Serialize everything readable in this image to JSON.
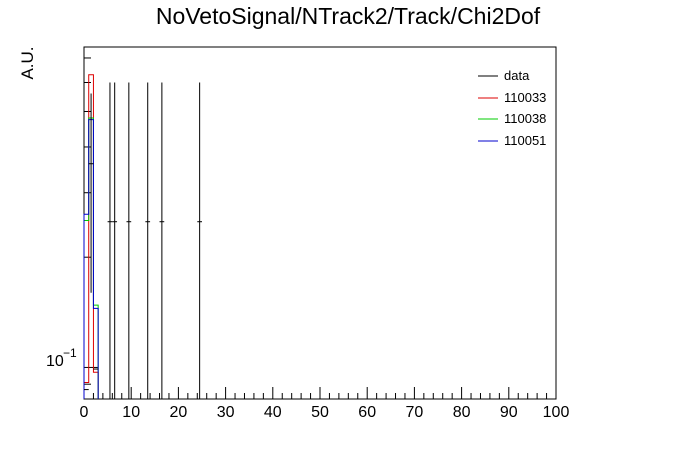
{
  "chart_data": {
    "type": "line",
    "title": "NoVetoSignal/NTrack2/Track/Chi2Dof",
    "xlabel": "",
    "ylabel": "A.U.",
    "xlim": [
      0,
      100
    ],
    "ylim": [
      0.082,
      0.75
    ],
    "y_log": true,
    "grid": false,
    "legend_position": "top-right",
    "x_tick_labels": [
      "0",
      "10",
      "20",
      "30",
      "40",
      "50",
      "60",
      "70",
      "80",
      "90",
      "100"
    ],
    "y_tick_label_base": "10",
    "y_tick_label_exp": "−1",
    "legend": [
      "data",
      "110033",
      "110038",
      "110051"
    ],
    "series": [
      {
        "name": "110033",
        "color": "#dd0000",
        "bin_width": 1,
        "bins": [
          {
            "x": 0.5,
            "y": 0.091
          },
          {
            "x": 1.5,
            "y": 0.63
          },
          {
            "x": 2.5,
            "y": 0.097
          }
        ]
      },
      {
        "name": "110038",
        "color": "#00cc00",
        "bin_width": 1,
        "bins": [
          {
            "x": 0.5,
            "y": 0.252
          },
          {
            "x": 1.5,
            "y": 0.48
          },
          {
            "x": 2.5,
            "y": 0.148
          }
        ]
      },
      {
        "name": "110051",
        "color": "#0000cc",
        "bin_width": 1,
        "bins": [
          {
            "x": 0.5,
            "y": 0.262
          },
          {
            "x": 1.5,
            "y": 0.475
          },
          {
            "x": 2.5,
            "y": 0.145
          }
        ]
      }
    ],
    "data_points": {
      "name": "data",
      "color": "#000000",
      "points": [
        {
          "x": 0.5,
          "y": 0.087,
          "err_lo": 0.0,
          "err_hi": 0.0
        },
        {
          "x": 1.5,
          "y": 0.36,
          "err_lo": 0.2,
          "err_hi": 0.2
        },
        {
          "x": 2.5,
          "y": 0.099,
          "err_lo": 0.0,
          "err_hi": 0.0
        },
        {
          "x": 5.5,
          "y": 0.25,
          "err_lo": 0.25,
          "err_hi": 0.35
        },
        {
          "x": 6.5,
          "y": 0.25,
          "err_lo": 0.25,
          "err_hi": 0.35
        },
        {
          "x": 9.5,
          "y": 0.25,
          "err_lo": 0.25,
          "err_hi": 0.35
        },
        {
          "x": 13.5,
          "y": 0.25,
          "err_lo": 0.25,
          "err_hi": 0.35
        },
        {
          "x": 16.5,
          "y": 0.25,
          "err_lo": 0.25,
          "err_hi": 0.35
        },
        {
          "x": 24.5,
          "y": 0.25,
          "err_lo": 0.25,
          "err_hi": 0.35
        }
      ]
    }
  }
}
